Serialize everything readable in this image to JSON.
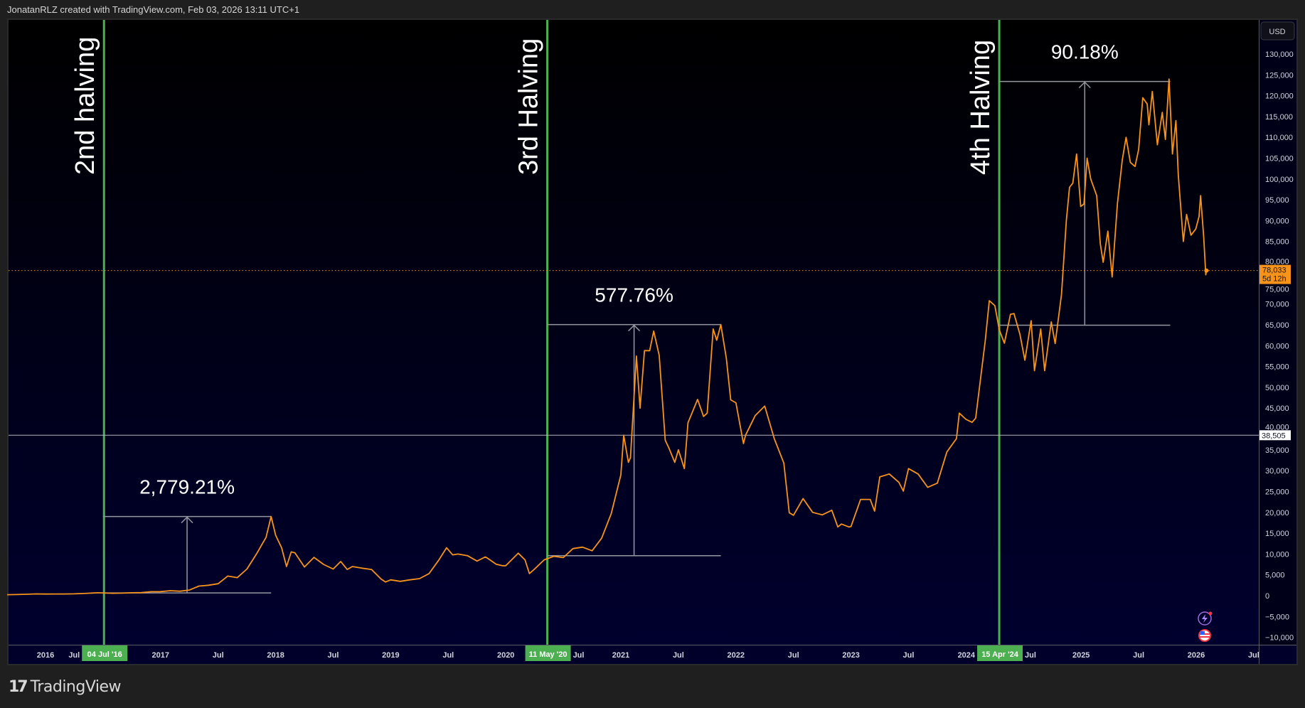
{
  "header": {
    "caption": "JonatanRLZ created with TradingView.com, Feb 03, 2026 13:11 UTC+1"
  },
  "footer": {
    "logo_text": "TradingView"
  },
  "colors": {
    "price_line": "#f7931a",
    "halving_line": "#4caf50",
    "measure": "#9598a1",
    "pane_top": "#000000",
    "pane_bottom": "#00002e",
    "crosshair": "#b2b5be"
  },
  "icons": [
    "lightning-sparkle-icon",
    "us-flag-icon"
  ],
  "chart_data": {
    "type": "line",
    "currency": "USD",
    "ylim": [
      -10000,
      130000
    ],
    "y_ticks": [
      -10000,
      -5000,
      0,
      5000,
      10000,
      15000,
      20000,
      25000,
      30000,
      35000,
      40000,
      45000,
      50000,
      55000,
      60000,
      65000,
      70000,
      75000,
      80000,
      85000,
      90000,
      95000,
      100000,
      105000,
      110000,
      115000,
      120000,
      125000,
      130000
    ],
    "y_tick_labels": [
      "−10,000",
      "−5,000",
      "0",
      "5,000",
      "10,000",
      "15,000",
      "20,000",
      "25,000",
      "30,000",
      "35,000",
      "40,000",
      "45,000",
      "50,000",
      "55,000",
      "60,000",
      "65,000",
      "70,000",
      "75,000",
      "80,000",
      "85,000",
      "90,000",
      "95,000",
      "100,000",
      "105,000",
      "110,000",
      "115,000",
      "120,000",
      "125,000",
      "130,000"
    ],
    "x_ticks": [
      {
        "date": "2016-01-01",
        "label": "2016"
      },
      {
        "date": "2016-07-01",
        "label": "Jul"
      },
      {
        "date": "2017-01-01",
        "label": "2017"
      },
      {
        "date": "2017-07-01",
        "label": "Jul"
      },
      {
        "date": "2018-01-01",
        "label": "2018"
      },
      {
        "date": "2018-07-01",
        "label": "Jul"
      },
      {
        "date": "2019-01-01",
        "label": "2019"
      },
      {
        "date": "2019-07-01",
        "label": "Jul"
      },
      {
        "date": "2020-01-01",
        "label": "2020"
      },
      {
        "date": "2020-07-01",
        "label": "Jul"
      },
      {
        "date": "2021-01-01",
        "label": "2021"
      },
      {
        "date": "2021-07-01",
        "label": "Jul"
      },
      {
        "date": "2022-01-01",
        "label": "2022"
      },
      {
        "date": "2022-07-01",
        "label": "Jul"
      },
      {
        "date": "2023-01-01",
        "label": "2023"
      },
      {
        "date": "2023-07-01",
        "label": "Jul"
      },
      {
        "date": "2024-01-01",
        "label": "2024"
      },
      {
        "date": "2024-07-01",
        "label": "Jul"
      },
      {
        "date": "2025-01-01",
        "label": "2025"
      },
      {
        "date": "2025-07-01",
        "label": "Jul"
      },
      {
        "date": "2026-01-01",
        "label": "2026"
      },
      {
        "date": "2026-07-01",
        "label": "Jul"
      }
    ],
    "last_price": {
      "value": 78033,
      "label": "78,033",
      "countdown": "5d 12h"
    },
    "crosshair": {
      "value": 38505,
      "label": "38,505"
    },
    "halvings": [
      {
        "label": "2nd halving",
        "date": "2016-07-04",
        "date_label": "04 Jul '16"
      },
      {
        "label": "3rd Halving",
        "date": "2020-05-11",
        "date_label": "11 May '20"
      },
      {
        "label": "4th Halving",
        "date": "2024-04-15",
        "date_label": "15 Apr '24"
      }
    ],
    "measurements": [
      {
        "label": "2,779.21%",
        "start": "2016-07-01",
        "end": "2017-12-17",
        "low": 660,
        "high": 19000
      },
      {
        "label": "577.76%",
        "start": "2020-05-11",
        "end": "2021-11-14",
        "low": 9600,
        "high": 65065
      },
      {
        "label": "90.18%",
        "start": "2024-04-15",
        "end": "2025-10-10",
        "low": 64900,
        "high": 123400
      }
    ],
    "series": [
      {
        "values": [
          [
            "2015-09-01",
            240
          ],
          [
            "2015-10-01",
            280
          ],
          [
            "2015-11-01",
            340
          ],
          [
            "2015-12-01",
            430
          ],
          [
            "2016-01-01",
            400
          ],
          [
            "2016-02-01",
            410
          ],
          [
            "2016-03-01",
            415
          ],
          [
            "2016-04-01",
            450
          ],
          [
            "2016-05-01",
            530
          ],
          [
            "2016-06-15",
            700
          ],
          [
            "2016-07-01",
            670
          ],
          [
            "2016-08-01",
            575
          ],
          [
            "2016-09-01",
            610
          ],
          [
            "2016-10-01",
            700
          ],
          [
            "2016-11-01",
            740
          ],
          [
            "2016-12-01",
            960
          ],
          [
            "2017-01-01",
            970
          ],
          [
            "2017-02-01",
            1190
          ],
          [
            "2017-03-01",
            1080
          ],
          [
            "2017-04-01",
            1350
          ],
          [
            "2017-05-01",
            2300
          ],
          [
            "2017-06-01",
            2500
          ],
          [
            "2017-07-01",
            2870
          ],
          [
            "2017-08-01",
            4700
          ],
          [
            "2017-09-01",
            4340
          ],
          [
            "2017-10-01",
            6400
          ],
          [
            "2017-11-01",
            10000
          ],
          [
            "2017-12-01",
            14000
          ],
          [
            "2017-12-17",
            19000
          ],
          [
            "2018-01-01",
            14500
          ],
          [
            "2018-01-20",
            11500
          ],
          [
            "2018-02-05",
            7000
          ],
          [
            "2018-02-20",
            10500
          ],
          [
            "2018-03-01",
            10300
          ],
          [
            "2018-04-01",
            6900
          ],
          [
            "2018-05-01",
            9200
          ],
          [
            "2018-06-01",
            7500
          ],
          [
            "2018-07-01",
            6400
          ],
          [
            "2018-07-25",
            8200
          ],
          [
            "2018-08-15",
            6300
          ],
          [
            "2018-09-01",
            7000
          ],
          [
            "2018-10-01",
            6600
          ],
          [
            "2018-11-01",
            6300
          ],
          [
            "2018-12-01",
            4000
          ],
          [
            "2018-12-15",
            3300
          ],
          [
            "2019-01-01",
            3800
          ],
          [
            "2019-02-01",
            3450
          ],
          [
            "2019-03-01",
            3800
          ],
          [
            "2019-04-01",
            4100
          ],
          [
            "2019-05-01",
            5300
          ],
          [
            "2019-06-01",
            8500
          ],
          [
            "2019-06-26",
            11500
          ],
          [
            "2019-07-15",
            9800
          ],
          [
            "2019-08-01",
            10000
          ],
          [
            "2019-09-01",
            9600
          ],
          [
            "2019-10-01",
            8300
          ],
          [
            "2019-10-27",
            9300
          ],
          [
            "2019-11-01",
            9150
          ],
          [
            "2019-12-01",
            7550
          ],
          [
            "2019-12-20",
            7200
          ],
          [
            "2020-01-01",
            7200
          ],
          [
            "2020-02-10",
            10200
          ],
          [
            "2020-03-01",
            8600
          ],
          [
            "2020-03-15",
            5300
          ],
          [
            "2020-04-01",
            6400
          ],
          [
            "2020-05-01",
            8600
          ],
          [
            "2020-06-01",
            9450
          ],
          [
            "2020-07-01",
            9150
          ],
          [
            "2020-08-01",
            11300
          ],
          [
            "2020-09-01",
            11650
          ],
          [
            "2020-10-01",
            10780
          ],
          [
            "2020-11-01",
            13800
          ],
          [
            "2020-12-01",
            19700
          ],
          [
            "2021-01-01",
            29000
          ],
          [
            "2021-01-10",
            38500
          ],
          [
            "2021-01-25",
            32000
          ],
          [
            "2021-02-01",
            33100
          ],
          [
            "2021-02-20",
            57500
          ],
          [
            "2021-03-01",
            45000
          ],
          [
            "2021-03-15",
            58800
          ],
          [
            "2021-04-01",
            58800
          ],
          [
            "2021-04-14",
            63500
          ],
          [
            "2021-05-01",
            57700
          ],
          [
            "2021-05-20",
            37300
          ],
          [
            "2021-06-01",
            35500
          ],
          [
            "2021-06-20",
            32000
          ],
          [
            "2021-07-01",
            35000
          ],
          [
            "2021-07-20",
            30500
          ],
          [
            "2021-08-01",
            41500
          ],
          [
            "2021-09-01",
            47100
          ],
          [
            "2021-09-20",
            43000
          ],
          [
            "2021-10-01",
            43800
          ],
          [
            "2021-10-20",
            64000
          ],
          [
            "2021-11-01",
            61300
          ],
          [
            "2021-11-14",
            65065
          ],
          [
            "2021-12-01",
            57000
          ],
          [
            "2021-12-15",
            47000
          ],
          [
            "2022-01-01",
            46300
          ],
          [
            "2022-01-25",
            36500
          ],
          [
            "2022-02-01",
            38500
          ],
          [
            "2022-03-01",
            43200
          ],
          [
            "2022-04-01",
            45500
          ],
          [
            "2022-05-01",
            37700
          ],
          [
            "2022-06-01",
            31800
          ],
          [
            "2022-06-18",
            19900
          ],
          [
            "2022-07-01",
            19300
          ],
          [
            "2022-08-01",
            23300
          ],
          [
            "2022-09-01",
            20000
          ],
          [
            "2022-10-01",
            19400
          ],
          [
            "2022-11-01",
            20500
          ],
          [
            "2022-11-20",
            16500
          ],
          [
            "2022-12-01",
            17200
          ],
          [
            "2022-12-25",
            16500
          ],
          [
            "2023-01-01",
            16600
          ],
          [
            "2023-02-01",
            23100
          ],
          [
            "2023-03-01",
            23100
          ],
          [
            "2023-03-15",
            20300
          ],
          [
            "2023-04-01",
            28500
          ],
          [
            "2023-05-01",
            29200
          ],
          [
            "2023-06-01",
            27200
          ],
          [
            "2023-06-15",
            25100
          ],
          [
            "2023-07-01",
            30500
          ],
          [
            "2023-08-01",
            29200
          ],
          [
            "2023-09-01",
            26000
          ],
          [
            "2023-10-01",
            27000
          ],
          [
            "2023-11-01",
            34500
          ],
          [
            "2023-12-01",
            37700
          ],
          [
            "2023-12-10",
            43800
          ],
          [
            "2024-01-01",
            42300
          ],
          [
            "2024-01-20",
            41600
          ],
          [
            "2024-02-01",
            42600
          ],
          [
            "2024-03-01",
            61200
          ],
          [
            "2024-03-14",
            70800
          ],
          [
            "2024-04-01",
            69600
          ],
          [
            "2024-04-15",
            63800
          ],
          [
            "2024-05-01",
            60600
          ],
          [
            "2024-05-20",
            67500
          ],
          [
            "2024-06-01",
            67700
          ],
          [
            "2024-06-20",
            62700
          ],
          [
            "2024-07-05",
            56500
          ],
          [
            "2024-07-25",
            66000
          ],
          [
            "2024-08-05",
            54000
          ],
          [
            "2024-08-25",
            64000
          ],
          [
            "2024-09-07",
            54000
          ],
          [
            "2024-09-28",
            65700
          ],
          [
            "2024-10-10",
            60500
          ],
          [
            "2024-10-30",
            72300
          ],
          [
            "2024-11-15",
            90000
          ],
          [
            "2024-11-25",
            98000
          ],
          [
            "2024-12-05",
            99000
          ],
          [
            "2024-12-17",
            106000
          ],
          [
            "2024-12-30",
            93400
          ],
          [
            "2025-01-10",
            94000
          ],
          [
            "2025-01-20",
            105000
          ],
          [
            "2025-02-01",
            100000
          ],
          [
            "2025-02-20",
            96000
          ],
          [
            "2025-03-01",
            84400
          ],
          [
            "2025-03-10",
            80000
          ],
          [
            "2025-03-25",
            87500
          ],
          [
            "2025-04-08",
            76500
          ],
          [
            "2025-04-25",
            94200
          ],
          [
            "2025-05-10",
            104600
          ],
          [
            "2025-05-22",
            110000
          ],
          [
            "2025-06-05",
            104000
          ],
          [
            "2025-06-20",
            103000
          ],
          [
            "2025-07-01",
            107100
          ],
          [
            "2025-07-14",
            119500
          ],
          [
            "2025-07-28",
            118000
          ],
          [
            "2025-08-03",
            113000
          ],
          [
            "2025-08-14",
            121000
          ],
          [
            "2025-08-30",
            108200
          ],
          [
            "2025-09-15",
            116000
          ],
          [
            "2025-09-25",
            109500
          ],
          [
            "2025-10-06",
            124000
          ],
          [
            "2025-10-17",
            106000
          ],
          [
            "2025-10-28",
            114000
          ],
          [
            "2025-11-05",
            101000
          ],
          [
            "2025-11-21",
            85000
          ],
          [
            "2025-12-01",
            91500
          ],
          [
            "2025-12-15",
            86500
          ],
          [
            "2025-12-30",
            88000
          ],
          [
            "2026-01-10",
            91000
          ],
          [
            "2026-01-15",
            96000
          ],
          [
            "2026-01-25",
            86000
          ],
          [
            "2026-02-01",
            77000
          ],
          [
            "2026-02-03",
            78033
          ]
        ]
      }
    ]
  }
}
